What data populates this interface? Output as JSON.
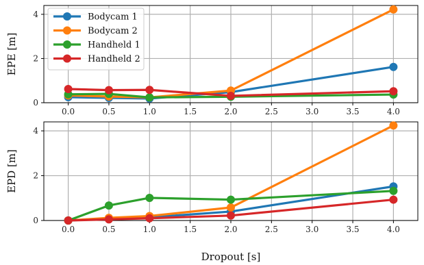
{
  "chart_data": [
    {
      "type": "line",
      "ylabel": "EPE [m]",
      "xlabel": "",
      "x": [
        0.0,
        0.5,
        1.0,
        2.0,
        4.0
      ],
      "xlim": [
        -0.3,
        4.3
      ],
      "ylim": [
        0,
        4.4
      ],
      "xticks": [
        0.0,
        0.5,
        1.0,
        1.5,
        2.0,
        2.5,
        3.0,
        3.5,
        4.0
      ],
      "yticks": [
        0,
        2,
        4
      ],
      "grid": true,
      "legend_position": "top-left",
      "series": [
        {
          "name": "Bodycam 1",
          "color": "#1f77b4",
          "values": [
            0.25,
            0.22,
            0.19,
            0.48,
            1.62
          ]
        },
        {
          "name": "Bodycam 2",
          "color": "#ff7f0e",
          "values": [
            0.33,
            0.28,
            0.24,
            0.55,
            4.22
          ]
        },
        {
          "name": "Handheld 1",
          "color": "#2ca02c",
          "values": [
            0.38,
            0.4,
            0.24,
            0.27,
            0.37
          ]
        },
        {
          "name": "Handheld 2",
          "color": "#d62728",
          "values": [
            0.62,
            0.57,
            0.58,
            0.31,
            0.52
          ]
        }
      ]
    },
    {
      "type": "line",
      "ylabel": "EPD [m]",
      "xlabel": "Dropout [s]",
      "x": [
        0.0,
        0.5,
        1.0,
        2.0,
        4.0
      ],
      "xlim": [
        -0.3,
        4.3
      ],
      "ylim": [
        0,
        4.4
      ],
      "xticks": [
        0.0,
        0.5,
        1.0,
        1.5,
        2.0,
        2.5,
        3.0,
        3.5,
        4.0
      ],
      "yticks": [
        0,
        2,
        4
      ],
      "grid": true,
      "series": [
        {
          "name": "Bodycam 1",
          "color": "#1f77b4",
          "values": [
            0.0,
            0.08,
            0.14,
            0.4,
            1.52
          ]
        },
        {
          "name": "Bodycam 2",
          "color": "#ff7f0e",
          "values": [
            0.0,
            0.12,
            0.2,
            0.58,
            4.24
          ]
        },
        {
          "name": "Handheld 1",
          "color": "#2ca02c",
          "values": [
            0.0,
            0.67,
            1.01,
            0.93,
            1.32
          ]
        },
        {
          "name": "Handheld 2",
          "color": "#d62728",
          "values": [
            0.0,
            0.05,
            0.1,
            0.22,
            0.93
          ]
        }
      ]
    }
  ]
}
